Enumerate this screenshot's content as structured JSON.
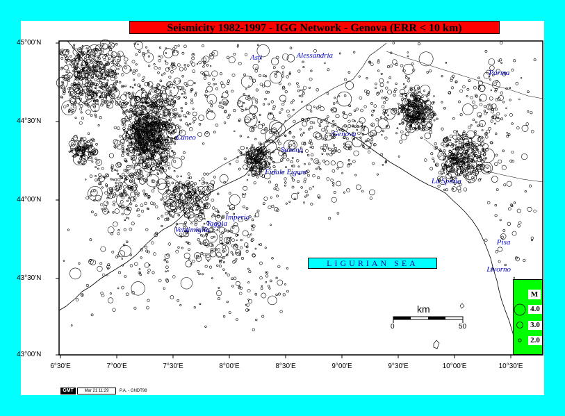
{
  "title": "Seismicity 1982-1997 - IGG Network - Genova (ERR < 10 km)",
  "lat_labels": [
    "45°00'N",
    "44°30'N",
    "44°00'N",
    "43°30'N",
    "43°00'N"
  ],
  "lon_labels": [
    "6°30'E",
    "7°00'E",
    "7°30'E",
    "8°00'E",
    "8°30'E",
    "9°00'E",
    "9°30'E",
    "10°00'E",
    "10°30'E"
  ],
  "places": [
    {
      "name": "Asti",
      "lon": 8.21,
      "lat": 44.9
    },
    {
      "name": "Alessandria",
      "lon": 8.62,
      "lat": 44.91
    },
    {
      "name": "Parma",
      "lon": 10.33,
      "lat": 44.8
    },
    {
      "name": "Genova",
      "lon": 8.94,
      "lat": 44.41
    },
    {
      "name": "Cuneo",
      "lon": 7.55,
      "lat": 44.39
    },
    {
      "name": "Savona",
      "lon": 8.48,
      "lat": 44.31
    },
    {
      "name": "Finale Ligure",
      "lon": 8.34,
      "lat": 44.17
    },
    {
      "name": "La Spezia",
      "lon": 9.82,
      "lat": 44.11
    },
    {
      "name": "Imperia",
      "lon": 7.99,
      "lat": 43.88
    },
    {
      "name": "Taggia",
      "lon": 7.82,
      "lat": 43.84
    },
    {
      "name": "Ventimiglia",
      "lon": 7.54,
      "lat": 43.8
    },
    {
      "name": "Pisa",
      "lon": 10.4,
      "lat": 43.72
    },
    {
      "name": "Livorno",
      "lon": 10.31,
      "lat": 43.55
    }
  ],
  "sea_label": "LIGURIAN SEA",
  "legend": {
    "title": "M",
    "magnitudes": [
      "4.0",
      "3.0",
      "2.0"
    ]
  },
  "scale": {
    "label": "km",
    "ticks": [
      "0",
      "50"
    ]
  },
  "footer": {
    "gmt": "GMT",
    "date": "Mar 21 11:29",
    "credit": "P.A. - GNDT98"
  },
  "colors": {
    "background": "#00ffff",
    "title_bg": "#ff0000",
    "legend_bg": "#00ff00",
    "place_text": "#0000cc",
    "sea_label_bg": "#00ffff"
  }
}
